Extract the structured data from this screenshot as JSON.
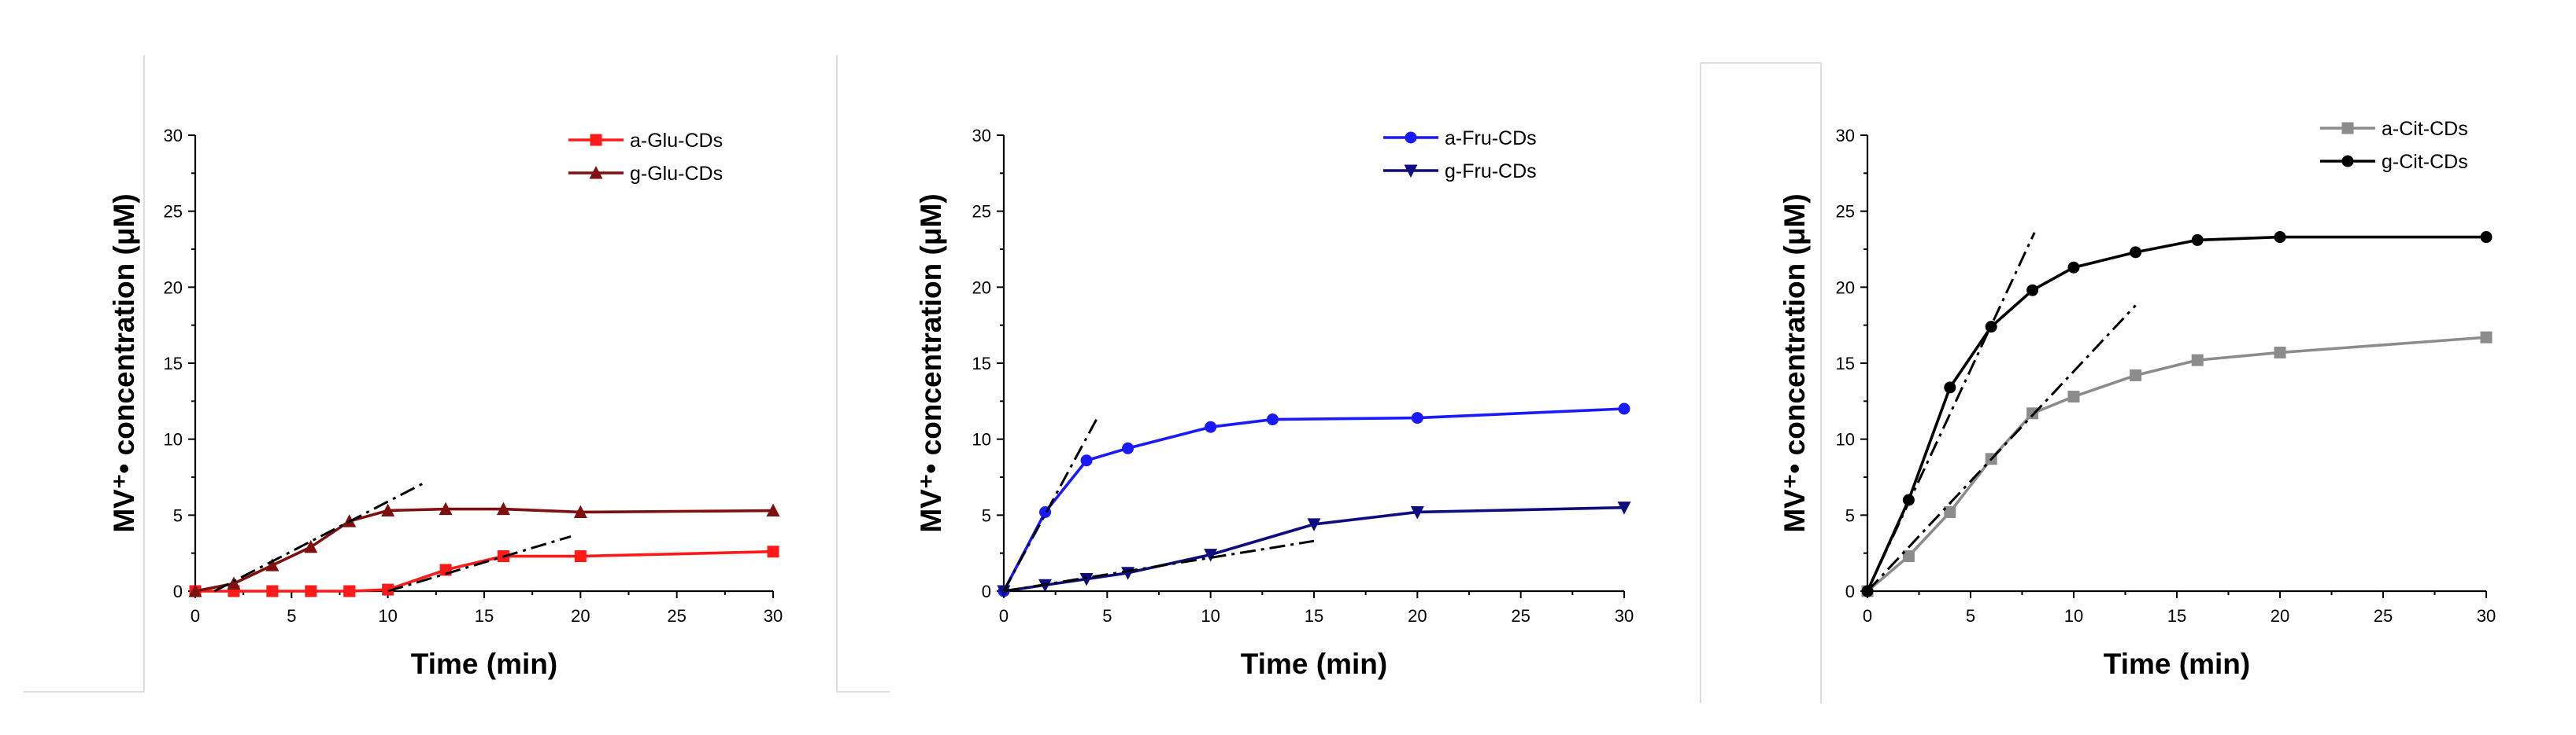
{
  "chart_data": [
    {
      "type": "line",
      "title": "",
      "xlabel": "Time (min)",
      "ylabel": "MV⁺• concentration (μM)",
      "xlim": [
        0,
        30
      ],
      "ylim": [
        0,
        30
      ],
      "xticks": [
        0,
        5,
        10,
        15,
        20,
        25,
        30
      ],
      "yticks": [
        0,
        5,
        10,
        15,
        20,
        25,
        30
      ],
      "legend_position": "top-right",
      "series": [
        {
          "name": "a-Glu-CDs",
          "color": "#ff1a1a",
          "marker": "square",
          "x": [
            0,
            2,
            4,
            6,
            8,
            10,
            13,
            16,
            20,
            30
          ],
          "y": [
            0,
            0,
            0,
            0,
            0,
            0.1,
            1.4,
            2.3,
            2.3,
            2.6
          ]
        },
        {
          "name": "g-Glu-CDs",
          "color": "#7f1010",
          "marker": "triangle-up",
          "x": [
            0,
            2,
            4,
            6,
            8,
            10,
            13,
            16,
            20,
            30
          ],
          "y": [
            0,
            0.5,
            1.7,
            2.9,
            4.6,
            5.3,
            5.4,
            5.4,
            5.2,
            5.3
          ]
        }
      ],
      "fits": [
        {
          "x": [
            1,
            12
          ],
          "y": [
            0,
            7.2
          ]
        },
        {
          "x": [
            10,
            19.5
          ],
          "y": [
            0,
            3.6
          ]
        }
      ]
    },
    {
      "type": "line",
      "title": "",
      "xlabel": "Time (min)",
      "ylabel": "MV⁺• concentration (μM)",
      "xlim": [
        0,
        30
      ],
      "ylim": [
        0,
        30
      ],
      "xticks": [
        0,
        5,
        10,
        15,
        20,
        25,
        30
      ],
      "yticks": [
        0,
        5,
        10,
        15,
        20,
        25,
        30
      ],
      "legend_position": "top-right",
      "series": [
        {
          "name": "a-Fru-CDs",
          "color": "#1a1aff",
          "marker": "circle",
          "x": [
            0,
            2,
            4,
            6,
            10,
            13,
            20,
            30
          ],
          "y": [
            0,
            5.2,
            8.6,
            9.4,
            10.8,
            11.3,
            11.4,
            12.0
          ]
        },
        {
          "name": "g-Fru-CDs",
          "color": "#0d0d80",
          "marker": "triangle-down",
          "x": [
            0,
            2,
            4,
            6,
            10,
            15,
            20,
            30
          ],
          "y": [
            0,
            0.4,
            0.8,
            1.2,
            2.4,
            4.4,
            5.2,
            5.5
          ]
        }
      ],
      "fits": [
        {
          "x": [
            0,
            4.6
          ],
          "y": [
            0,
            11.6
          ]
        },
        {
          "x": [
            0,
            15
          ],
          "y": [
            0,
            3.3
          ]
        }
      ]
    },
    {
      "type": "line",
      "title": "",
      "xlabel": "Time (min)",
      "ylabel": "MV⁺• concentration (μM)",
      "xlim": [
        0,
        30
      ],
      "ylim": [
        0,
        30
      ],
      "xticks": [
        0,
        5,
        10,
        15,
        20,
        25,
        30
      ],
      "yticks": [
        0,
        5,
        10,
        15,
        20,
        25,
        30
      ],
      "legend_position": "top-right",
      "series": [
        {
          "name": "a-Cit-CDs",
          "color": "#8c8c8c",
          "marker": "square",
          "x": [
            0,
            2,
            4,
            6,
            8,
            10,
            13,
            16,
            20,
            30
          ],
          "y": [
            0,
            2.3,
            5.2,
            8.7,
            11.7,
            12.8,
            14.2,
            15.2,
            15.7,
            16.7
          ]
        },
        {
          "name": "g-Cit-CDs",
          "color": "#000000",
          "marker": "circle",
          "x": [
            0,
            2,
            4,
            6,
            8,
            10,
            13,
            16,
            20,
            30
          ],
          "y": [
            0,
            6.0,
            13.4,
            17.4,
            19.8,
            21.3,
            22.3,
            23.1,
            23.3,
            23.3
          ]
        }
      ],
      "fits": [
        {
          "x": [
            0,
            8.1
          ],
          "y": [
            0,
            23.6
          ]
        },
        {
          "x": [
            0,
            13
          ],
          "y": [
            0,
            18.8
          ]
        }
      ]
    }
  ]
}
